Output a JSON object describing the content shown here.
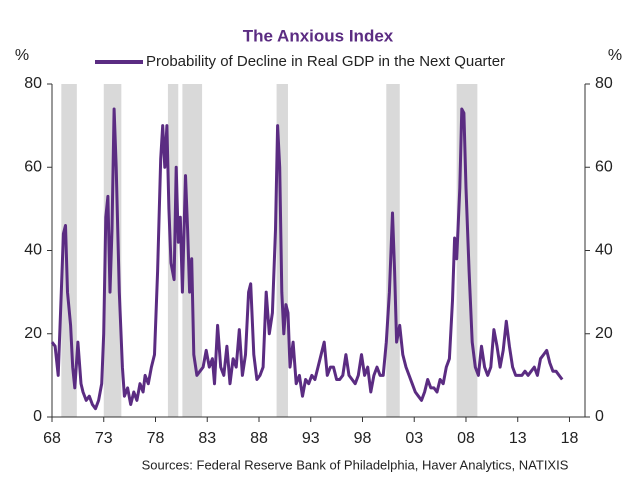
{
  "chart_data": {
    "type": "line",
    "title": "The Anxious Index",
    "y_label": "%",
    "y2_label": "%",
    "source": "Sources: Federal Reserve Bank of Philadelphia, Haver Analytics, NATIXIS",
    "xlim": [
      1968,
      2019.5
    ],
    "xticks": [
      {
        "value": 1968,
        "label": "68"
      },
      {
        "value": 1973,
        "label": "73"
      },
      {
        "value": 1978,
        "label": "78"
      },
      {
        "value": 1983,
        "label": "83"
      },
      {
        "value": 1988,
        "label": "88"
      },
      {
        "value": 1993,
        "label": "93"
      },
      {
        "value": 1998,
        "label": "98"
      },
      {
        "value": 2003,
        "label": "03"
      },
      {
        "value": 2008,
        "label": "08"
      },
      {
        "value": 2013,
        "label": "13"
      },
      {
        "value": 2018,
        "label": "18"
      }
    ],
    "ylim": [
      0,
      80
    ],
    "yticks": [
      0,
      20,
      40,
      60,
      80
    ],
    "y2lim": [
      0,
      80
    ],
    "y2ticks": [
      0,
      20,
      40,
      60,
      80
    ],
    "recessions": [
      [
        1968.9,
        1970.4
      ],
      [
        1973.0,
        1974.7
      ],
      [
        1979.2,
        1980.2
      ],
      [
        1980.6,
        1982.5
      ],
      [
        1989.7,
        1990.8
      ],
      [
        2000.3,
        2001.6
      ],
      [
        2007.1,
        2009.1
      ]
    ],
    "recession_color": "#d9d9d9",
    "series": [
      {
        "name": "Probability of Decline in Real GDP in the Next Quarter",
        "color": "#5b2c82",
        "x": [
          1968.0,
          1968.3,
          1968.6,
          1968.9,
          1969.1,
          1969.3,
          1969.5,
          1969.8,
          1970.0,
          1970.2,
          1970.5,
          1970.8,
          1971.0,
          1971.3,
          1971.6,
          1971.9,
          1972.2,
          1972.5,
          1972.8,
          1973.0,
          1973.2,
          1973.4,
          1973.6,
          1973.8,
          1974.0,
          1974.2,
          1974.5,
          1974.8,
          1975.0,
          1975.3,
          1975.6,
          1975.9,
          1976.2,
          1976.5,
          1976.8,
          1977.0,
          1977.3,
          1977.6,
          1977.9,
          1978.2,
          1978.5,
          1978.7,
          1978.9,
          1979.1,
          1979.3,
          1979.5,
          1979.8,
          1980.0,
          1980.2,
          1980.4,
          1980.6,
          1980.9,
          1981.1,
          1981.3,
          1981.5,
          1981.7,
          1982.0,
          1982.3,
          1982.6,
          1982.9,
          1983.2,
          1983.5,
          1983.7,
          1984.0,
          1984.3,
          1984.6,
          1984.9,
          1985.2,
          1985.5,
          1985.8,
          1986.1,
          1986.4,
          1986.7,
          1987.0,
          1987.2,
          1987.5,
          1987.8,
          1988.1,
          1988.4,
          1988.7,
          1989.0,
          1989.3,
          1989.6,
          1989.8,
          1990.0,
          1990.2,
          1990.4,
          1990.6,
          1990.8,
          1991.0,
          1991.3,
          1991.6,
          1991.9,
          1992.2,
          1992.5,
          1992.8,
          1993.1,
          1993.4,
          1993.7,
          1994.0,
          1994.3,
          1994.6,
          1994.9,
          1995.2,
          1995.5,
          1995.8,
          1996.1,
          1996.4,
          1996.7,
          1997.0,
          1997.3,
          1997.6,
          1997.9,
          1998.2,
          1998.5,
          1998.8,
          1999.1,
          1999.4,
          1999.7,
          2000.0,
          2000.3,
          2000.6,
          2000.9,
          2001.1,
          2001.3,
          2001.6,
          2001.9,
          2002.2,
          2002.5,
          2002.8,
          2003.1,
          2003.4,
          2003.7,
          2004.0,
          2004.3,
          2004.6,
          2004.9,
          2005.2,
          2005.5,
          2005.8,
          2006.1,
          2006.4,
          2006.7,
          2006.9,
          2007.1,
          2007.4,
          2007.6,
          2007.8,
          2008.0,
          2008.3,
          2008.6,
          2008.9,
          2009.2,
          2009.5,
          2009.8,
          2010.1,
          2010.4,
          2010.7,
          2011.0,
          2011.3,
          2011.6,
          2011.9,
          2012.2,
          2012.5,
          2012.8,
          2013.1,
          2013.4,
          2013.7,
          2014.0,
          2014.3,
          2014.6,
          2014.9,
          2015.2,
          2015.5,
          2015.8,
          2016.1,
          2016.4,
          2016.7,
          2017.0,
          2017.3
        ],
        "values": [
          18,
          17,
          10,
          30,
          44,
          46,
          30,
          22,
          12,
          7,
          18,
          8,
          6,
          4,
          5,
          3,
          2,
          4,
          8,
          20,
          48,
          53,
          30,
          45,
          74,
          60,
          30,
          12,
          5,
          7,
          3,
          6,
          4,
          8,
          6,
          10,
          8,
          12,
          15,
          35,
          62,
          70,
          60,
          70,
          50,
          37,
          33,
          60,
          42,
          48,
          30,
          58,
          45,
          30,
          38,
          15,
          10,
          11,
          12,
          16,
          12,
          14,
          8,
          22,
          12,
          10,
          17,
          8,
          14,
          12,
          21,
          10,
          15,
          30,
          32,
          15,
          9,
          10,
          12,
          30,
          20,
          25,
          45,
          70,
          60,
          30,
          20,
          27,
          25,
          12,
          18,
          8,
          10,
          5,
          9,
          8,
          10,
          9,
          12,
          15,
          18,
          10,
          12,
          12,
          9,
          9,
          10,
          15,
          10,
          9,
          8,
          10,
          15,
          10,
          12,
          6,
          10,
          12,
          10,
          10,
          18,
          30,
          49,
          35,
          18,
          22,
          15,
          12,
          10,
          8,
          6,
          5,
          4,
          6,
          9,
          7,
          7,
          6,
          9,
          8,
          12,
          14,
          28,
          43,
          38,
          55,
          74,
          73,
          55,
          35,
          18,
          12,
          10,
          17,
          12,
          10,
          12,
          21,
          17,
          12,
          16,
          23,
          17,
          12,
          10,
          10,
          10,
          11,
          10,
          11,
          12,
          10,
          14,
          15,
          16,
          13,
          11,
          11,
          10,
          9
        ]
      }
    ]
  }
}
